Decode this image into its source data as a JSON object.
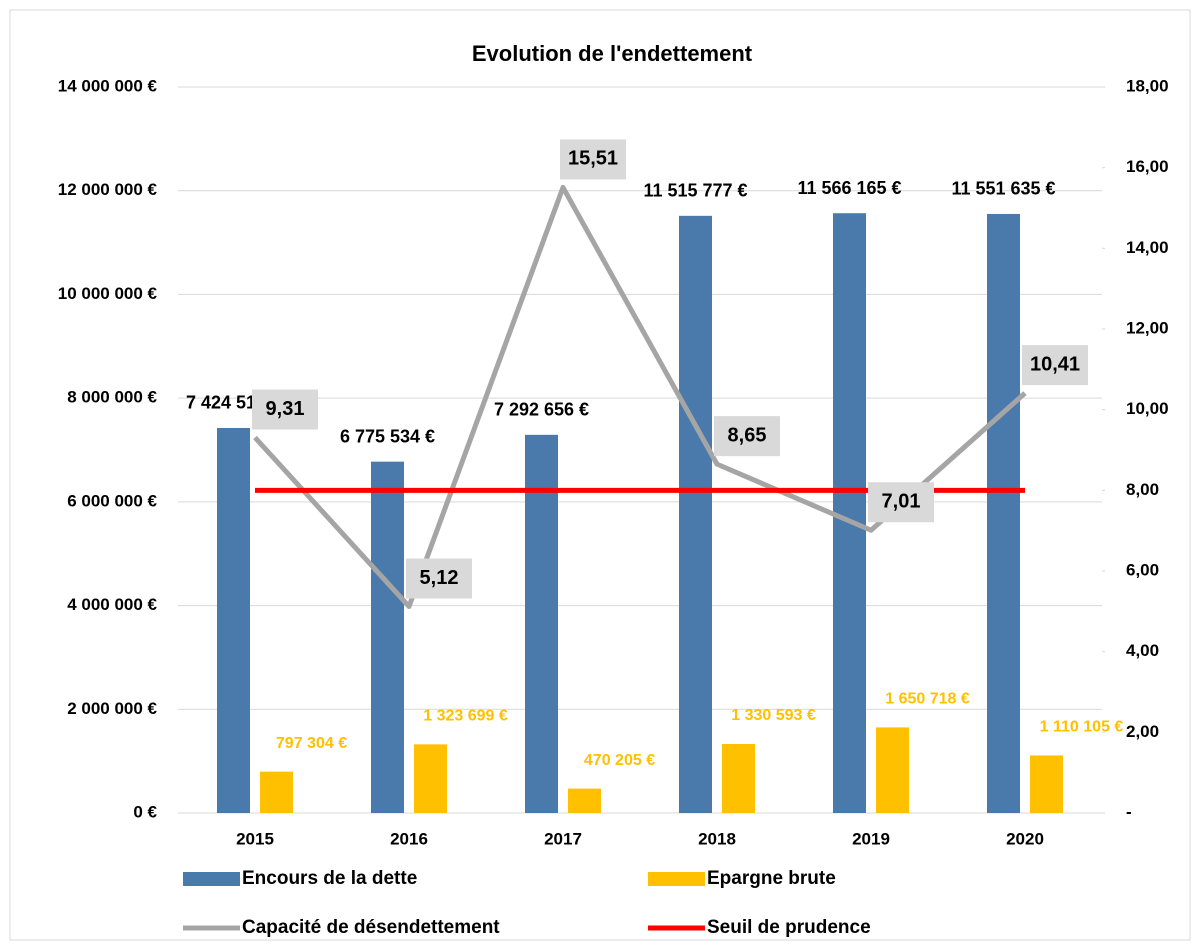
{
  "chart_data": {
    "type": "bar",
    "title": "Evolution de l'endettement",
    "categories": [
      "2015",
      "2016",
      "2017",
      "2018",
      "2019",
      "2020"
    ],
    "ylim": [
      0,
      14000000
    ],
    "yticks": [
      {
        "value": 0,
        "label": "0 €"
      },
      {
        "value": 2000000,
        "label": "2 000 000 €"
      },
      {
        "value": 4000000,
        "label": "4 000 000 €"
      },
      {
        "value": 6000000,
        "label": "6 000 000 €"
      },
      {
        "value": 8000000,
        "label": "8 000 000 €"
      },
      {
        "value": 10000000,
        "label": "10 000 000 €"
      },
      {
        "value": 12000000,
        "label": "12 000 000 €"
      },
      {
        "value": 14000000,
        "label": "14 000 000 €"
      }
    ],
    "y2lim": [
      0,
      18
    ],
    "y2ticks": [
      {
        "value": 0,
        "label": "-"
      },
      {
        "value": 2,
        "label": "2,00"
      },
      {
        "value": 4,
        "label": "4,00"
      },
      {
        "value": 6,
        "label": "6,00"
      },
      {
        "value": 8,
        "label": "8,00"
      },
      {
        "value": 10,
        "label": "10,00"
      },
      {
        "value": 12,
        "label": "12,00"
      },
      {
        "value": 14,
        "label": "14,00"
      },
      {
        "value": 16,
        "label": "16,00"
      },
      {
        "value": 18,
        "label": "18,00"
      }
    ],
    "grid": true,
    "legend": "bottom",
    "series": [
      {
        "name": "Encours de la dette",
        "type": "bar",
        "color": "#4a7aab",
        "values": [
          7424513,
          6775534,
          7292656,
          11515777,
          11566165,
          11551635
        ],
        "value_labels": [
          "7 424 513 €",
          "6 775 534 €",
          "7 292 656 €",
          "11 515 777 €",
          "11 566 165 €",
          "11 551 635 €"
        ]
      },
      {
        "name": "Epargne brute",
        "type": "bar",
        "color": "#ffc000",
        "values": [
          797304,
          1323699,
          470205,
          1330593,
          1650718,
          1110105
        ],
        "value_labels": [
          "797 304 €",
          "1 323 699 €",
          "470 205 €",
          "1 330 593 €",
          "1 650 718 €",
          "1 110 105 €"
        ]
      },
      {
        "name": "Capacité de désendettement",
        "type": "line",
        "axis": "y2",
        "color": "#a5a5a5",
        "values": [
          9.31,
          5.12,
          15.51,
          8.65,
          7.01,
          10.41
        ],
        "value_labels": [
          "9,31",
          "5,12",
          "15,51",
          "8,65",
          "7,01",
          "10,41"
        ]
      },
      {
        "name": "Seuil de prudence",
        "type": "line",
        "axis": "y2",
        "color": "#ff0000",
        "values": [
          8,
          8,
          8,
          8,
          8,
          8
        ]
      }
    ]
  }
}
